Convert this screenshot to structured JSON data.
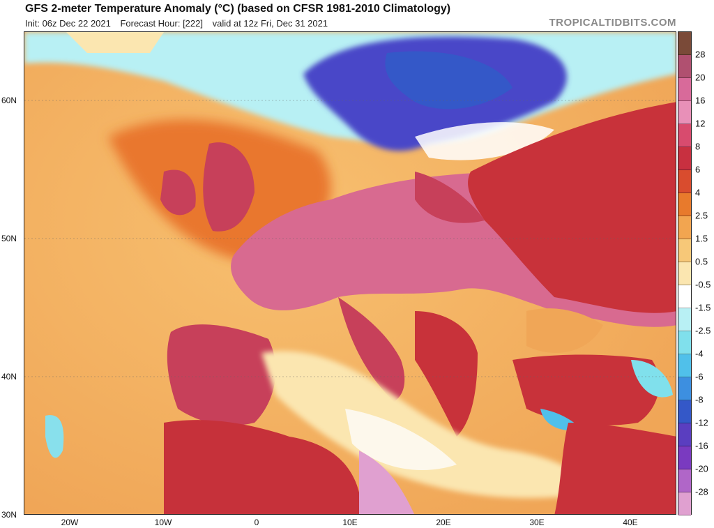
{
  "header": {
    "title": "GFS 2-meter Temperature Anomaly (°C) (based on CFSR 1981-2010 Climatology)",
    "init": "Init: 06z Dec 22 2021",
    "forecast_hour": "Forecast Hour: [222]",
    "valid": "valid at 12z Fri, Dec 31 2021",
    "brand": "TROPICALTIDBITS.COM"
  },
  "axes": {
    "lat_labels": [
      "60N",
      "50N",
      "40N",
      "30N"
    ],
    "lon_labels": [
      "20W",
      "10W",
      "0",
      "10E",
      "20E",
      "30E",
      "40E"
    ]
  },
  "colorbar": {
    "labels": [
      "28",
      "20",
      "16",
      "12",
      "8",
      "6",
      "4",
      "2.5",
      "1.5",
      "0.5",
      "-0.5",
      "-1.5",
      "-2.5",
      "-4",
      "-6",
      "-8",
      "-12",
      "-16",
      "-20",
      "-28"
    ],
    "colors": [
      "#7a4a38",
      "#b05070",
      "#d86a9a",
      "#e890b8",
      "#d84b6e",
      "#c83040",
      "#d94c2e",
      "#e87a2c",
      "#f2a550",
      "#f7c878",
      "#fbe6b0",
      "#ffffff",
      "#b8f0f4",
      "#80e0ec",
      "#50c0ea",
      "#3d8fe0",
      "#3458c8",
      "#5a3ec0",
      "#7a3ac0",
      "#b066c8",
      "#e0a0d0"
    ]
  },
  "map": {
    "colors": {
      "ocean_warm": "#f0a657",
      "ocean_hot": "#e76b2f",
      "land_hot": "#c7405a",
      "land_pink": "#d86a90",
      "east_red": "#c8323a",
      "scandinavia_cold": "#4a46c8",
      "med_white": "#fdf8ec",
      "africa_red": "#c6313a",
      "cyan": "#88e0ec"
    }
  }
}
